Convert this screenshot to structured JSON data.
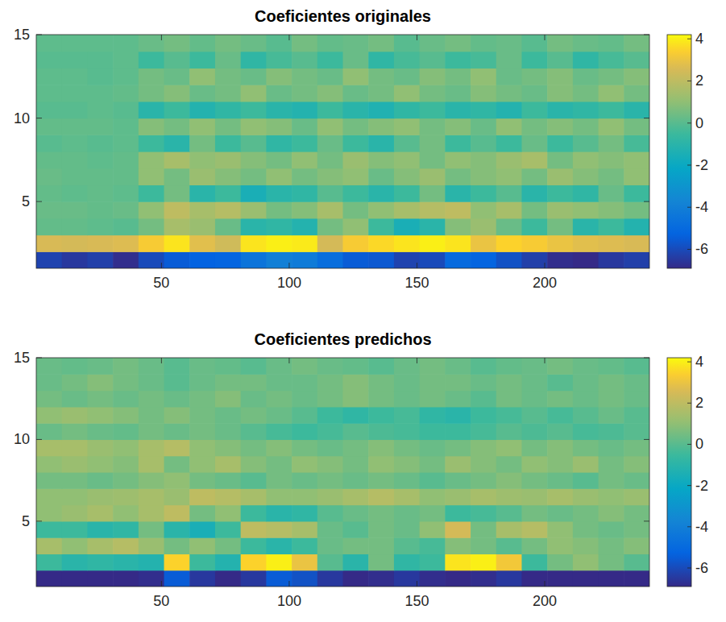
{
  "chart_data": [
    {
      "type": "heatmap",
      "title": "Coeficientes originales",
      "xlim": [
        1,
        241
      ],
      "ylim": [
        1,
        15
      ],
      "xticks": [
        50,
        100,
        150,
        200
      ],
      "yticks": [
        5,
        10,
        15
      ],
      "x_edges": [
        1,
        11,
        21,
        31,
        41,
        51,
        61,
        71,
        81,
        91,
        101,
        111,
        121,
        131,
        141,
        151,
        161,
        171,
        181,
        191,
        201,
        211,
        221,
        231,
        241
      ],
      "y_edges": [
        1,
        2,
        3,
        4,
        5,
        6,
        7,
        8,
        9,
        10,
        11,
        12,
        13,
        14,
        15
      ],
      "colorbar_range": [
        -6.9,
        4.2
      ],
      "colorbar_ticks": [
        -6,
        -4,
        -2,
        0,
        2,
        4
      ],
      "cells": [
        [
          -6.2,
          -6.5,
          -6.3,
          -6.8,
          -6,
          -5.5,
          -5.3,
          -5.2,
          -4.5,
          -4,
          -4.2,
          -4.8,
          -5.5,
          -5.6,
          -6.2,
          -6,
          -5,
          -5.2,
          -5.8,
          -6.3,
          -6.8,
          -6.9,
          -6.5,
          -6.3
        ],
        [
          2.6,
          2.5,
          2.6,
          2.7,
          3.3,
          3.8,
          2.8,
          2.4,
          3.8,
          4,
          3.9,
          2.5,
          3.3,
          3.6,
          3.8,
          4,
          3.8,
          3,
          3.5,
          3.3,
          3,
          2.8,
          2.7,
          2.6
        ],
        [
          0.2,
          0.2,
          0.1,
          0,
          0.5,
          1.5,
          1.2,
          0.3,
          -1,
          -0.8,
          -1.2,
          0.5,
          1,
          -0.5,
          -1.5,
          -1,
          0.8,
          1.2,
          0.3,
          -0.5,
          0.5,
          -1,
          -0.5,
          -1.2
        ],
        [
          0.3,
          0.3,
          0.2,
          0.3,
          1,
          2,
          1.5,
          1.8,
          1.2,
          0.5,
          0.8,
          1.5,
          0.5,
          1,
          1.5,
          1.8,
          2,
          1,
          1.5,
          0.5,
          1.2,
          1,
          0.8,
          0.5
        ],
        [
          0.2,
          0.1,
          0.2,
          0.1,
          -0.5,
          0.5,
          -1,
          -0.5,
          -1.5,
          -1,
          -0.8,
          0,
          -0.5,
          -1,
          -0.5,
          0.5,
          -1,
          -0.5,
          0,
          -1,
          -0.5,
          -0.8,
          0.3,
          -0.5
        ],
        [
          0.3,
          0.2,
          0.2,
          0.2,
          1,
          0.5,
          1.2,
          0.8,
          0.5,
          1,
          0.5,
          0.8,
          1,
          0.3,
          0.8,
          1.2,
          0.5,
          0.8,
          1,
          0.5,
          1.2,
          0.8,
          0.5,
          1
        ],
        [
          0.2,
          0.2,
          0.1,
          0.2,
          1,
          1.5,
          1,
          1.2,
          0.8,
          0.5,
          1,
          0.5,
          1.2,
          0.8,
          1,
          0.5,
          1,
          0.8,
          1.2,
          1.5,
          0.5,
          1,
          0.8,
          1
        ],
        [
          0,
          0.1,
          0,
          0.1,
          -0.5,
          -1,
          0.5,
          -0.5,
          0,
          -0.8,
          -0.5,
          0.3,
          -0.5,
          -1,
          0,
          0.5,
          -0.5,
          0,
          -0.5,
          0.3,
          -0.5,
          0,
          0.5,
          -0.3
        ],
        [
          0.2,
          0.2,
          0.2,
          0.1,
          0.8,
          0.5,
          1,
          0.5,
          1,
          0.8,
          0.3,
          1,
          0.5,
          0.8,
          1,
          0.5,
          0.8,
          0.3,
          1,
          0.5,
          0.8,
          0.5,
          1,
          0.5
        ],
        [
          0,
          0,
          0.1,
          0,
          -1,
          -0.5,
          -1.2,
          -0.8,
          -0.5,
          -1,
          -1.2,
          -0.5,
          -1,
          -1.3,
          -0.8,
          -0.5,
          -1,
          -0.8,
          -1.2,
          -0.5,
          -1,
          -0.8,
          -0.5,
          -1
        ],
        [
          0.1,
          0.1,
          0.1,
          0.2,
          0.5,
          0.8,
          0.3,
          0.5,
          1,
          0.3,
          0.5,
          0.8,
          0.3,
          0.5,
          1,
          0.5,
          0.3,
          0.8,
          0.5,
          0.3,
          0.8,
          0.5,
          1,
          0.5
        ],
        [
          0.1,
          0.1,
          0,
          0.1,
          0.5,
          0.3,
          1,
          0.5,
          0.3,
          0.8,
          0.5,
          0.3,
          1,
          0.5,
          0.3,
          0.8,
          0.5,
          1,
          0.3,
          0.5,
          0.8,
          0.3,
          0.5,
          0.8
        ],
        [
          0,
          0,
          0,
          0.1,
          -0.5,
          0,
          -0.5,
          0.3,
          -0.8,
          -0.3,
          0,
          -0.5,
          0.3,
          -0.8,
          -0.3,
          0,
          -0.5,
          -0.3,
          0.3,
          -0.5,
          0,
          -0.8,
          -0.3,
          0
        ],
        [
          0.1,
          0.1,
          0.1,
          0.1,
          0.3,
          0.5,
          0.2,
          0.5,
          0.3,
          0,
          0.5,
          0.2,
          0.3,
          0.5,
          0,
          0.3,
          0.5,
          0.2,
          0.3,
          0,
          0.5,
          0.3,
          0.2,
          0.5
        ]
      ]
    },
    {
      "type": "heatmap",
      "title": "Coeficientes predichos",
      "xlim": [
        1,
        241
      ],
      "ylim": [
        1,
        15
      ],
      "xticks": [
        50,
        100,
        150,
        200
      ],
      "yticks": [
        5,
        10,
        15
      ],
      "x_edges": [
        1,
        11,
        21,
        31,
        41,
        51,
        61,
        71,
        81,
        91,
        101,
        111,
        121,
        131,
        141,
        151,
        161,
        171,
        181,
        191,
        201,
        211,
        221,
        231,
        241
      ],
      "y_edges": [
        1,
        2,
        3,
        4,
        5,
        6,
        7,
        8,
        9,
        10,
        11,
        12,
        13,
        14,
        15
      ],
      "colorbar_range": [
        -6.9,
        4.2
      ],
      "colorbar_ticks": [
        -6,
        -4,
        -2,
        0,
        2,
        4
      ],
      "cells": [
        [
          -7,
          -7,
          -7,
          -7,
          -6.8,
          -5.5,
          -6.5,
          -7,
          -6.5,
          -5.5,
          -5.8,
          -6.5,
          -7,
          -6.8,
          -6.5,
          -6.8,
          -7,
          -6.8,
          -6.5,
          -7,
          -7,
          -7,
          -7,
          -7
        ],
        [
          -0.5,
          -1,
          -0.8,
          -1,
          -1.2,
          3.5,
          -0.5,
          -1.2,
          3.5,
          4,
          3,
          0,
          -1,
          0.5,
          -0.8,
          -0.5,
          3.8,
          4,
          3.2,
          -0.5,
          0.5,
          1,
          0.5,
          0
        ],
        [
          1.5,
          1,
          1.5,
          1.8,
          1.2,
          0.5,
          1,
          0.5,
          -0.5,
          -1,
          -0.5,
          0.3,
          0.5,
          0.5,
          0,
          -0.3,
          0.8,
          0.5,
          0,
          0.5,
          1,
          0.8,
          0.5,
          0.8
        ],
        [
          -0.5,
          -0.5,
          -1,
          -0.8,
          0.5,
          -1,
          -1.5,
          -0.5,
          2,
          1.8,
          1.5,
          0.3,
          0,
          0.5,
          0.3,
          1,
          2.5,
          0.5,
          1.5,
          1.8,
          1,
          0.5,
          0.3,
          0.5
        ],
        [
          1,
          1.2,
          1.5,
          1,
          1.5,
          2,
          0.5,
          1,
          -0.5,
          -1,
          -0.8,
          0,
          0.3,
          0.5,
          0.3,
          0.5,
          -0.5,
          -0.3,
          0,
          0.5,
          0.3,
          0.5,
          0.8,
          0.5
        ],
        [
          1,
          1,
          1.2,
          1.3,
          1.5,
          1.2,
          2,
          1.8,
          1.5,
          1,
          1,
          1.2,
          1.5,
          1.8,
          1.5,
          1,
          1.2,
          1.5,
          1.3,
          1.2,
          1.5,
          1.2,
          1,
          1.2
        ],
        [
          0.5,
          0.5,
          0.3,
          0.5,
          0.8,
          1,
          0.5,
          0.3,
          0,
          0.5,
          0.3,
          0.5,
          0.3,
          0.5,
          0.3,
          0,
          0.3,
          0.5,
          0.8,
          0.5,
          0.3,
          0,
          0.5,
          0.3
        ],
        [
          1,
          1.2,
          1,
          0.8,
          1.5,
          0.5,
          1,
          1.5,
          0.8,
          0.5,
          1,
          0.8,
          0.5,
          1,
          0.8,
          0.5,
          1.2,
          0.8,
          0.5,
          1,
          0.8,
          1.2,
          0.5,
          0.8
        ],
        [
          1.5,
          1.5,
          1.2,
          1,
          1.5,
          1.8,
          1,
          0.8,
          0.5,
          0.8,
          0.5,
          0.3,
          0.5,
          0.8,
          0.5,
          0.3,
          0.5,
          0.8,
          1,
          0.5,
          0.8,
          0.5,
          0.3,
          0.5
        ],
        [
          0.3,
          0.5,
          0.3,
          0.2,
          0.5,
          0.3,
          0.5,
          0.3,
          0,
          -0.3,
          -0.5,
          -0.3,
          0,
          -0.2,
          -0.3,
          -0.5,
          -0.5,
          -0.3,
          0,
          -0.2,
          0,
          -0.3,
          -0.2,
          0
        ],
        [
          1,
          1.2,
          1,
          0.8,
          0.5,
          0.8,
          0.5,
          0.3,
          0.5,
          0.3,
          0,
          -0.5,
          -0.8,
          -0.5,
          -0.3,
          -0.8,
          -1,
          -0.5,
          -0.3,
          0,
          -0.3,
          0,
          0.3,
          0
        ],
        [
          0.5,
          0.3,
          0.5,
          0.3,
          0.5,
          0.3,
          0.5,
          0.8,
          0.3,
          0.5,
          0.3,
          0.5,
          0.8,
          0.5,
          0.3,
          0.5,
          0.3,
          0,
          0.5,
          0.3,
          0.5,
          0.3,
          0.5,
          0.3
        ],
        [
          0.3,
          0.5,
          0.8,
          0.5,
          0.3,
          0,
          0.3,
          0.5,
          0.5,
          0.3,
          0.3,
          0.5,
          0.8,
          0.5,
          0.3,
          0.5,
          0.5,
          0.3,
          0.5,
          0.3,
          0,
          0.3,
          0.5,
          0.3
        ],
        [
          0.3,
          0.2,
          0.3,
          0.5,
          0.3,
          0,
          0.3,
          0.2,
          0,
          0.3,
          0.5,
          0.3,
          0.2,
          0,
          0.3,
          0.5,
          0.3,
          0,
          0.2,
          0.3,
          0.5,
          0.3,
          0.2,
          0
        ]
      ]
    }
  ]
}
